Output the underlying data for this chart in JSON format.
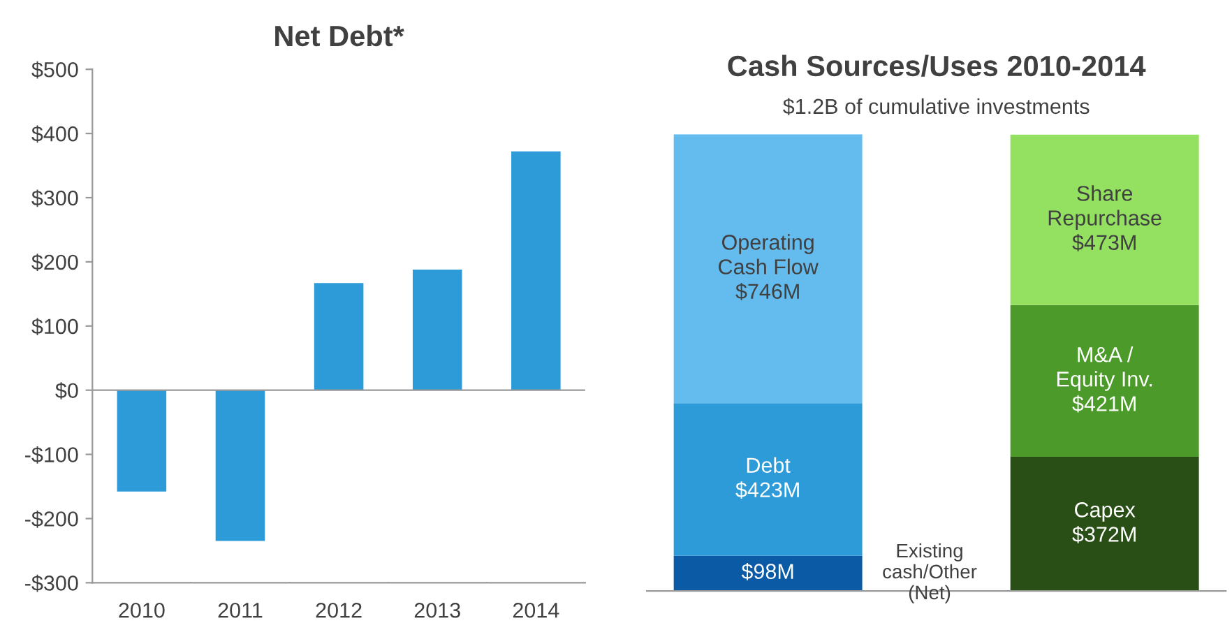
{
  "chart_data": [
    {
      "type": "bar",
      "title": "Net Debt*",
      "categories": [
        "2010",
        "2011",
        "2012",
        "2013",
        "2014"
      ],
      "values": [
        -158,
        -235,
        167,
        188,
        372
      ],
      "color": "#2e9bd9",
      "ylim": [
        -300,
        500
      ],
      "yticks": [
        {
          "value": -300,
          "label": "-$300"
        },
        {
          "value": -200,
          "label": "-$200"
        },
        {
          "value": -100,
          "label": "-$100"
        },
        {
          "value": 0,
          "label": "$0"
        },
        {
          "value": 100,
          "label": "$100"
        },
        {
          "value": 200,
          "label": "$200"
        },
        {
          "value": 300,
          "label": "$300"
        },
        {
          "value": 400,
          "label": "$400"
        },
        {
          "value": 500,
          "label": "$500"
        }
      ]
    },
    {
      "type": "bar",
      "title": "Cash Sources/Uses 2010-2014",
      "subtitle": "$1.2B of cumulative investments",
      "stacked": true,
      "categories": [
        null,
        null
      ],
      "tick_labels": false,
      "series": [
        {
          "name": "Existing cash/Other (Net)",
          "color": "#0a5aa5",
          "values": [
            98,
            null
          ],
          "value_labels": [
            "$98M",
            null
          ]
        },
        {
          "name": "Debt",
          "color": "#2e9bd9",
          "values": [
            423,
            null
          ],
          "value_labels": [
            "$423M",
            null
          ]
        },
        {
          "name": "Operating Cash Flow",
          "color": "#63bbee",
          "values": [
            746,
            null
          ],
          "value_labels": [
            "$746M",
            null
          ]
        },
        {
          "name": "Capex",
          "color": "#2a4f16",
          "values": [
            null,
            372
          ],
          "value_labels": [
            null,
            "$372M"
          ]
        },
        {
          "name": "M&A / Equity Inv.",
          "color": "#4c9a2a",
          "values": [
            null,
            421
          ],
          "value_labels": [
            null,
            "$421M"
          ]
        },
        {
          "name": "Share Repurchase",
          "color": "#94e060",
          "values": [
            null,
            473
          ],
          "value_labels": [
            null,
            "$473M"
          ]
        }
      ]
    }
  ]
}
